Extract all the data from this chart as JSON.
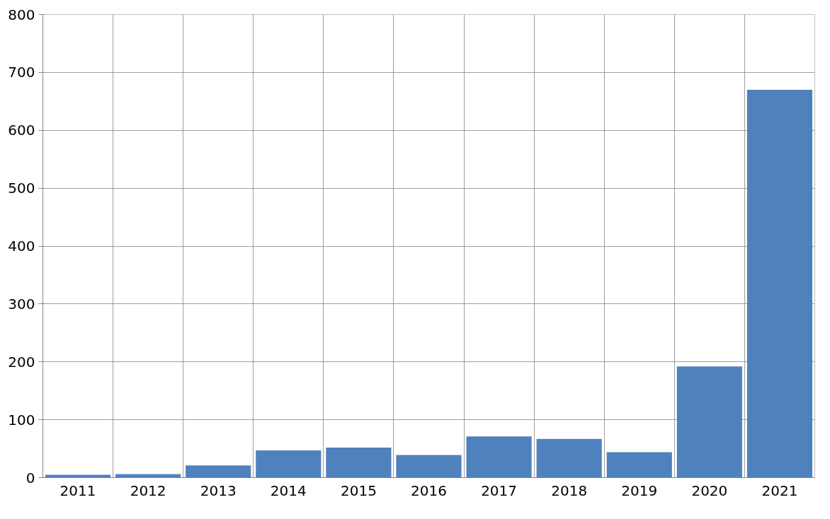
{
  "chart_data": {
    "type": "bar",
    "categories": [
      "2011",
      "2012",
      "2013",
      "2014",
      "2015",
      "2016",
      "2017",
      "2018",
      "2019",
      "2020",
      "2021"
    ],
    "values": [
      5,
      6,
      21,
      47,
      52,
      39,
      71,
      67,
      44,
      192,
      670
    ],
    "color": "#4f81bd",
    "ylim": [
      0,
      800
    ],
    "yticks": [
      0,
      100,
      200,
      300,
      400,
      500,
      600,
      700,
      800
    ],
    "grid": true
  }
}
